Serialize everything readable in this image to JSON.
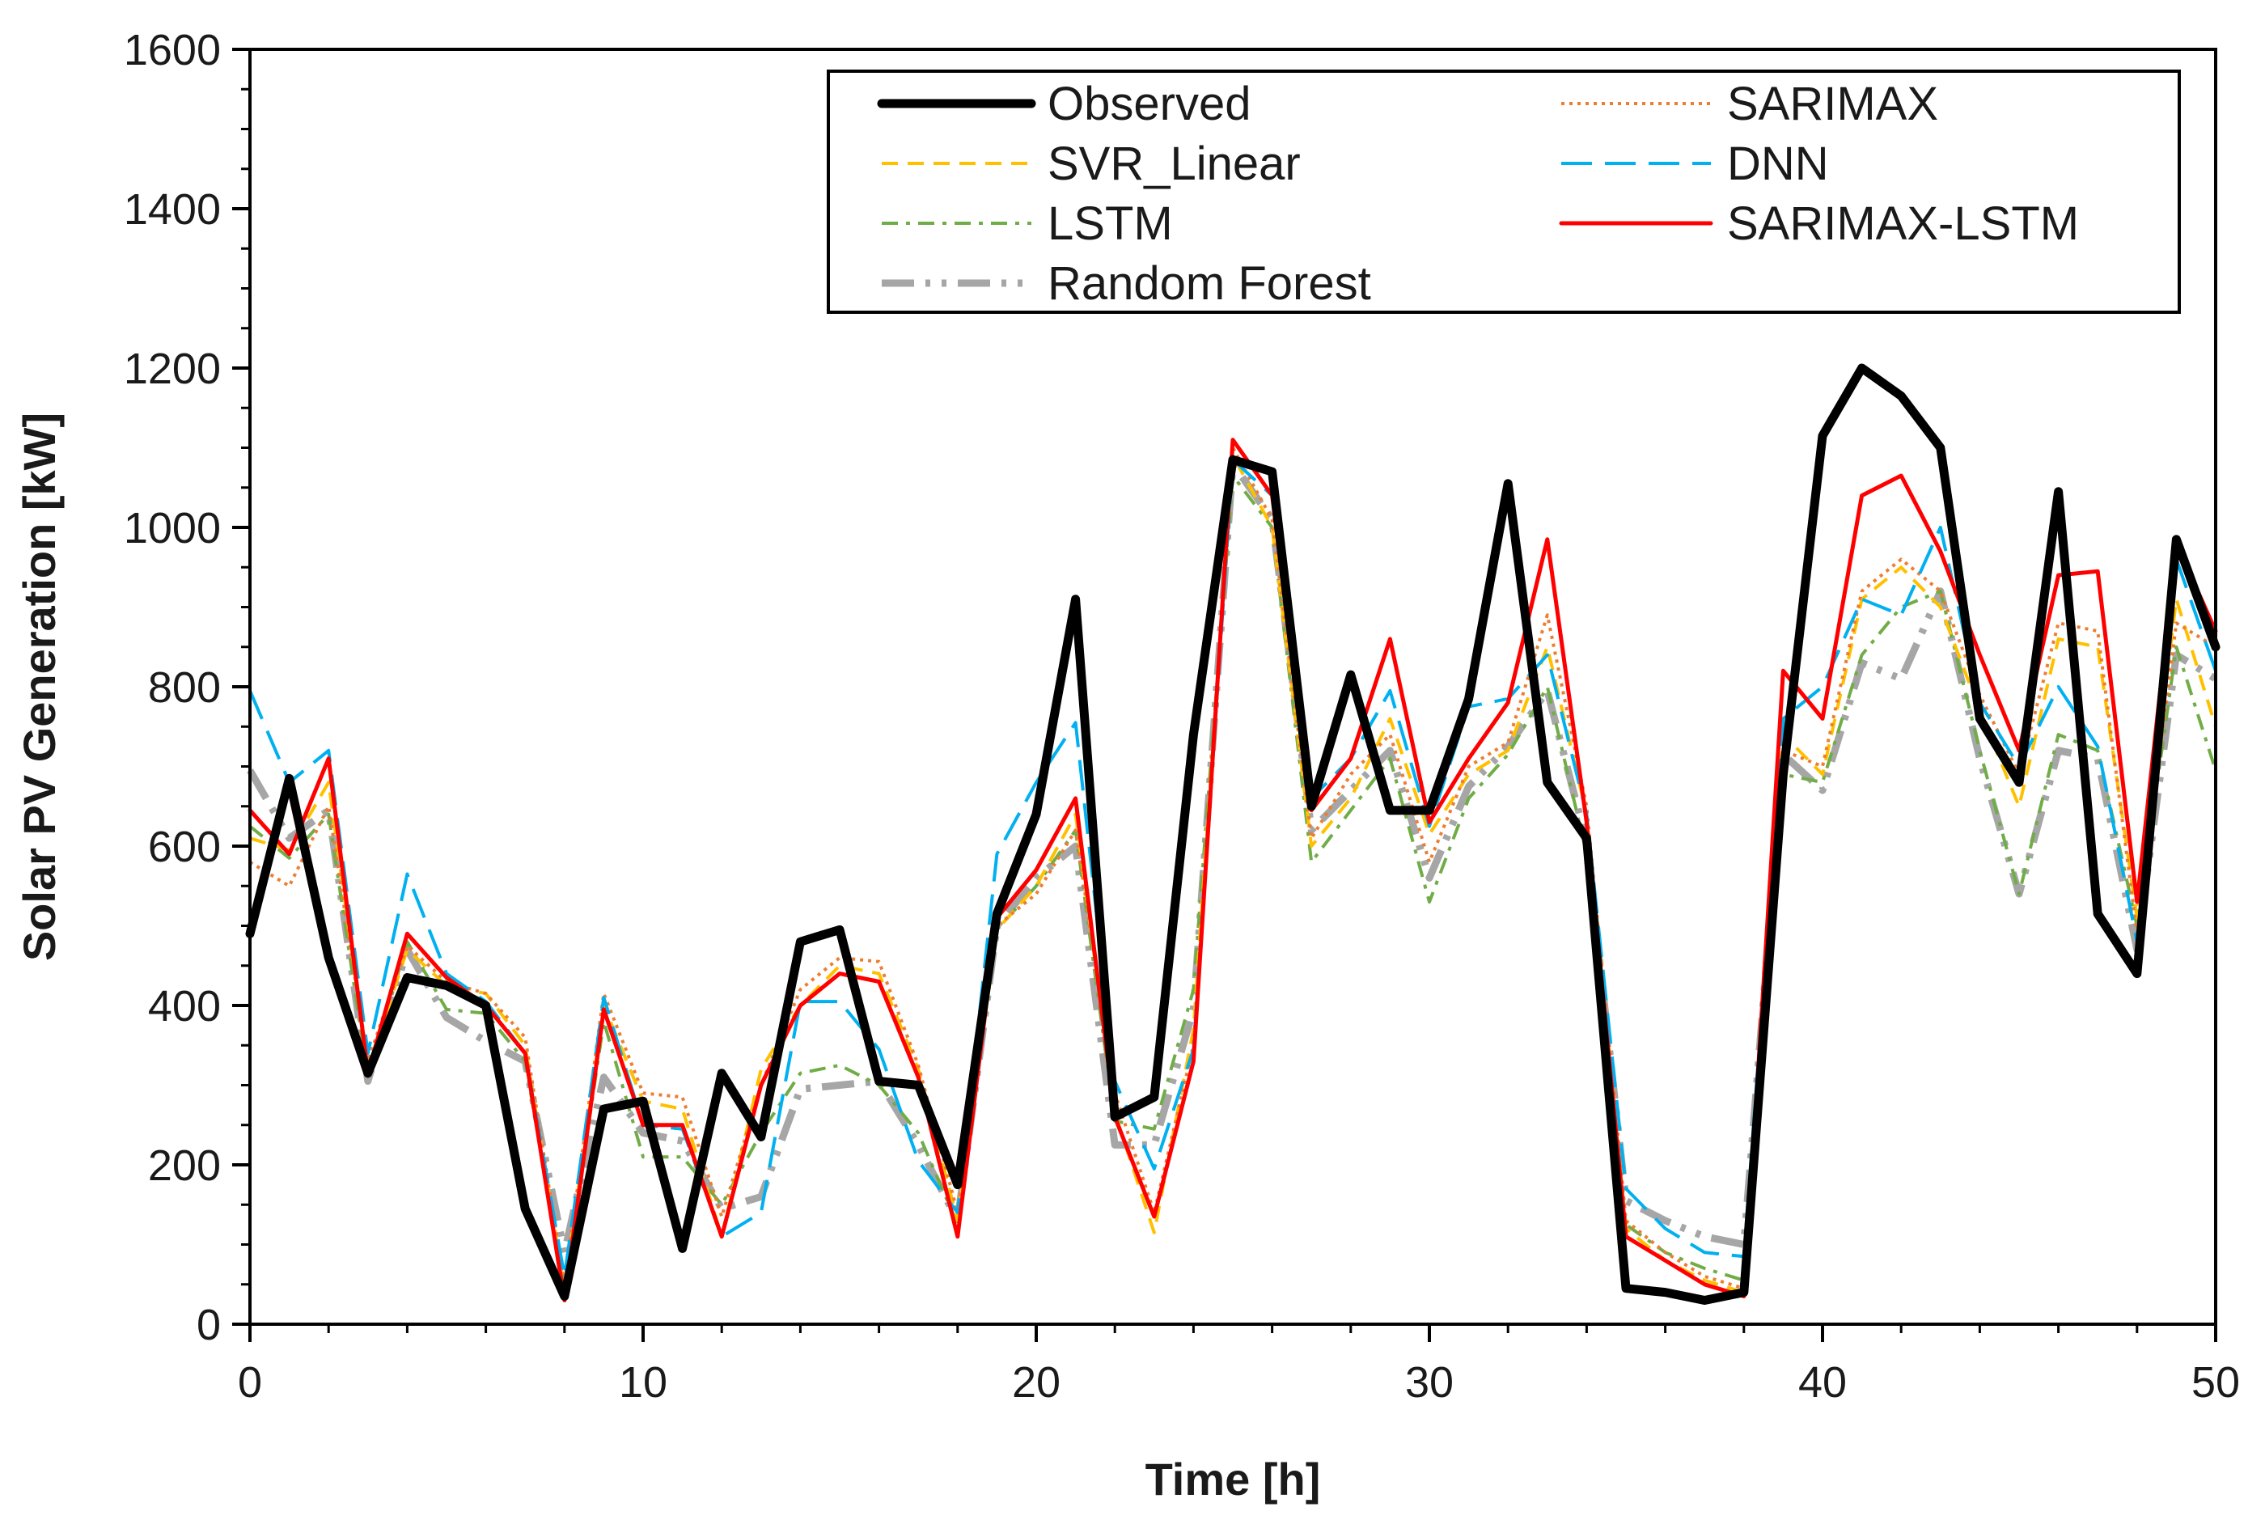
{
  "chart_data": {
    "type": "line",
    "title": "",
    "xlabel": "Time [h]",
    "ylabel": "Solar PV Generation [kW]",
    "xlim": [
      0,
      50
    ],
    "ylim": [
      0,
      1600
    ],
    "xticks": [
      0,
      10,
      20,
      30,
      40,
      50
    ],
    "yticks": [
      0,
      200,
      400,
      600,
      800,
      1000,
      1200,
      1400,
      1600
    ],
    "xtick_labels": [
      "0",
      "10",
      "20",
      "30",
      "40",
      "50"
    ],
    "ytick_labels": [
      "0",
      "200",
      "400",
      "600",
      "800",
      "1000",
      "1200",
      "1400",
      "1600"
    ],
    "grid": false,
    "legend_position": "top-right",
    "x": [
      0,
      1,
      2,
      3,
      4,
      5,
      6,
      7,
      8,
      9,
      10,
      11,
      12,
      13,
      14,
      15,
      16,
      17,
      18,
      19,
      20,
      21,
      22,
      23,
      24,
      25,
      26,
      27,
      28,
      29,
      30,
      31,
      32,
      33,
      34,
      35,
      36,
      37,
      38,
      39,
      40,
      41,
      42,
      43,
      44,
      45,
      46,
      47,
      48,
      49,
      50
    ],
    "series": [
      {
        "name": "Observed",
        "color": "#000000",
        "style": "solid-thick",
        "values": [
          490,
          685,
          460,
          315,
          435,
          425,
          400,
          145,
          35,
          270,
          280,
          95,
          315,
          235,
          480,
          495,
          305,
          300,
          175,
          515,
          640,
          910,
          260,
          285,
          740,
          1085,
          1070,
          650,
          815,
          645,
          645,
          785,
          1055,
          680,
          610,
          45,
          40,
          30,
          40,
          690,
          1115,
          1200,
          1165,
          1100,
          760,
          680,
          1045,
          515,
          440,
          985,
          850
        ]
      },
      {
        "name": "SARIMAX",
        "color": "#ED7D31",
        "style": "dotted",
        "values": [
          580,
          550,
          650,
          330,
          475,
          430,
          415,
          360,
          50,
          415,
          290,
          285,
          135,
          300,
          420,
          460,
          455,
          325,
          140,
          500,
          540,
          620,
          290,
          140,
          350,
          1100,
          1010,
          610,
          690,
          740,
          580,
          700,
          730,
          890,
          650,
          130,
          90,
          60,
          45,
          720,
          700,
          920,
          960,
          920,
          790,
          690,
          880,
          870,
          490,
          880,
          850
        ]
      },
      {
        "name": "SVR_Linear",
        "color": "#FFC000",
        "style": "dashed",
        "values": [
          610,
          595,
          680,
          320,
          470,
          425,
          415,
          350,
          45,
          400,
          280,
          270,
          110,
          320,
          400,
          450,
          440,
          320,
          130,
          495,
          550,
          640,
          265,
          115,
          370,
          1090,
          1000,
          600,
          660,
          760,
          615,
          690,
          720,
          850,
          640,
          120,
          80,
          55,
          40,
          740,
          690,
          910,
          950,
          900,
          770,
          650,
          860,
          850,
          510,
          910,
          750
        ]
      },
      {
        "name": "DNN",
        "color": "#00B0F0",
        "style": "long-dash",
        "values": [
          795,
          680,
          720,
          340,
          565,
          440,
          405,
          340,
          60,
          410,
          250,
          245,
          110,
          140,
          405,
          405,
          345,
          205,
          140,
          590,
          680,
          755,
          305,
          195,
          345,
          1085,
          1040,
          660,
          710,
          795,
          625,
          775,
          785,
          840,
          640,
          170,
          120,
          90,
          85,
          760,
          800,
          910,
          890,
          1000,
          780,
          700,
          800,
          725,
          480,
          960,
          820
        ]
      },
      {
        "name": "LSTM",
        "color": "#70AD47",
        "style": "dash-dot",
        "values": [
          625,
          585,
          640,
          310,
          480,
          395,
          390,
          330,
          45,
          380,
          210,
          210,
          150,
          240,
          315,
          325,
          300,
          240,
          125,
          495,
          550,
          620,
          255,
          245,
          420,
          1065,
          1000,
          580,
          645,
          710,
          530,
          660,
          715,
          800,
          590,
          125,
          90,
          70,
          55,
          690,
          680,
          840,
          900,
          920,
          720,
          540,
          740,
          720,
          500,
          850,
          695
        ]
      },
      {
        "name": "SARIMAX-LSTM",
        "color": "#FF0000",
        "style": "solid",
        "values": [
          645,
          590,
          710,
          315,
          490,
          435,
          400,
          340,
          30,
          395,
          250,
          250,
          110,
          300,
          400,
          440,
          430,
          310,
          110,
          510,
          570,
          660,
          260,
          135,
          330,
          1110,
          1040,
          645,
          710,
          860,
          630,
          710,
          780,
          985,
          630,
          110,
          80,
          50,
          35,
          820,
          760,
          1040,
          1065,
          970,
          840,
          720,
          940,
          945,
          530,
          980,
          870
        ]
      },
      {
        "name": "Random Forest",
        "color": "#A6A6A6",
        "style": "dash-dot-gray",
        "values": [
          695,
          610,
          645,
          305,
          470,
          385,
          355,
          330,
          90,
          310,
          240,
          230,
          145,
          160,
          295,
          300,
          305,
          225,
          130,
          500,
          560,
          600,
          225,
          225,
          395,
          1080,
          1010,
          620,
          670,
          720,
          560,
          675,
          725,
          795,
          605,
          155,
          130,
          110,
          100,
          715,
          670,
          830,
          810,
          920,
          710,
          540,
          720,
          710,
          470,
          840,
          810
        ]
      }
    ]
  }
}
